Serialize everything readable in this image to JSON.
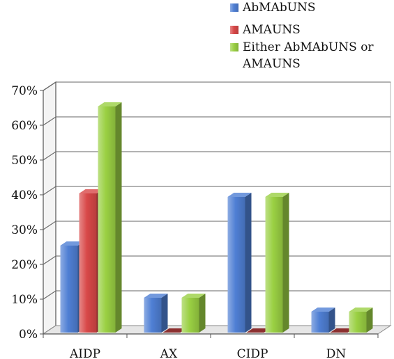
{
  "chart_data": {
    "type": "bar",
    "categories": [
      "AIDP",
      "AX",
      "CIDP",
      "DN"
    ],
    "series": [
      {
        "name": "AbMAbUNS",
        "values": [
          25,
          10,
          39,
          6
        ],
        "color": "#4f7fd4"
      },
      {
        "name": "AMAUNS",
        "values": [
          40,
          0,
          0,
          0
        ],
        "color": "#d84848"
      },
      {
        "name": "Either AbMAbUNS or AMAUNS",
        "values": [
          65,
          10,
          39,
          6
        ],
        "color": "#9ad043"
      }
    ],
    "ylim": [
      0,
      70
    ],
    "y_ticks": [
      "0%",
      "10%",
      "20%",
      "30%",
      "40%",
      "50%",
      "60%",
      "70%"
    ],
    "y_tick_values": [
      0,
      10,
      20,
      30,
      40,
      50,
      60,
      70
    ],
    "legend_position": "top-right",
    "legend_lines": [
      [
        "AbMAbUNS"
      ],
      [
        "AMAUNS"
      ],
      [
        "Either AbMAbUNS or",
        "AMAUNS"
      ]
    ],
    "grid": true,
    "style": "3d-bar"
  }
}
